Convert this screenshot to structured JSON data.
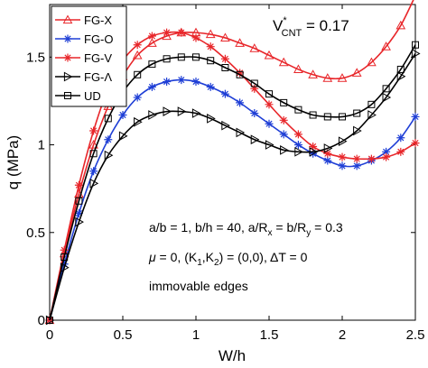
{
  "chart_data": {
    "type": "line",
    "xlabel": "W/h",
    "ylabel": "q (MPa)",
    "xlim": [
      0,
      2.5
    ],
    "ylim": [
      0,
      1.8
    ],
    "xticks": [
      "0",
      "0.5",
      "1",
      "1.5",
      "2",
      "2.5"
    ],
    "yticks": [
      "0",
      "0.5",
      "1",
      "1.5"
    ],
    "legend_position": "top-left",
    "annotations": {
      "vcnt_main": "V",
      "vcnt_sup": "*",
      "vcnt_sub": "CNT",
      "vcnt_value": " = 0.17",
      "geometry_line": "a/b = 1, b/h = 40, a/R",
      "geometry_sub_x": "x",
      "geometry_mid": " = b/R",
      "geometry_sub_y": "y",
      "geometry_end": " = 0.3",
      "params_mu": "μ",
      "params_rest_a": " = 0, (K",
      "params_sub_1": "1",
      "params_comma": ",K",
      "params_sub_2": "2",
      "params_rest_b": ") = (0,0), ΔT = 0",
      "edges": "immovable edges"
    },
    "series": [
      {
        "name": "FG-X",
        "color": "#e8262a",
        "marker": "triangle-up",
        "x": [
          0,
          0.1,
          0.2,
          0.3,
          0.4,
          0.5,
          0.6,
          0.7,
          0.8,
          0.9,
          1.0,
          1.1,
          1.2,
          1.3,
          1.4,
          1.5,
          1.6,
          1.7,
          1.8,
          1.9,
          2.0,
          2.1,
          2.2,
          2.3,
          2.4,
          2.5
        ],
        "y": [
          0,
          0.38,
          0.72,
          1.0,
          1.22,
          1.39,
          1.51,
          1.58,
          1.62,
          1.64,
          1.64,
          1.63,
          1.61,
          1.58,
          1.55,
          1.51,
          1.47,
          1.43,
          1.4,
          1.38,
          1.38,
          1.41,
          1.47,
          1.56,
          1.68,
          1.85
        ]
      },
      {
        "name": "FG-O",
        "color": "#1f3fd6",
        "marker": "star",
        "x": [
          0,
          0.1,
          0.2,
          0.3,
          0.4,
          0.5,
          0.6,
          0.7,
          0.8,
          0.9,
          1.0,
          1.1,
          1.2,
          1.3,
          1.4,
          1.5,
          1.6,
          1.7,
          1.8,
          1.9,
          2.0,
          2.1,
          2.2,
          2.3,
          2.4,
          2.5
        ],
        "y": [
          0,
          0.32,
          0.61,
          0.85,
          1.03,
          1.17,
          1.27,
          1.33,
          1.36,
          1.37,
          1.36,
          1.33,
          1.29,
          1.24,
          1.18,
          1.12,
          1.06,
          1.0,
          0.95,
          0.91,
          0.88,
          0.88,
          0.91,
          0.96,
          1.04,
          1.16
        ]
      },
      {
        "name": "FG-V",
        "color": "#e8262a",
        "marker": "star",
        "x": [
          0,
          0.1,
          0.2,
          0.3,
          0.4,
          0.5,
          0.6,
          0.7,
          0.8,
          0.9,
          1.0,
          1.1,
          1.2,
          1.3,
          1.4,
          1.5,
          1.6,
          1.7,
          1.8,
          1.9,
          2.0,
          2.1,
          2.2,
          2.3,
          2.4,
          2.5
        ],
        "y": [
          0,
          0.4,
          0.77,
          1.08,
          1.32,
          1.48,
          1.57,
          1.62,
          1.64,
          1.64,
          1.61,
          1.56,
          1.49,
          1.41,
          1.32,
          1.23,
          1.14,
          1.06,
          0.99,
          0.95,
          0.93,
          0.92,
          0.92,
          0.93,
          0.96,
          1.01
        ]
      },
      {
        "name": "FG-Λ",
        "color": "#000000",
        "marker": "triangle-right",
        "x": [
          0,
          0.1,
          0.2,
          0.3,
          0.4,
          0.5,
          0.6,
          0.7,
          0.8,
          0.9,
          1.0,
          1.1,
          1.2,
          1.3,
          1.4,
          1.5,
          1.6,
          1.7,
          1.8,
          1.9,
          2.0,
          2.1,
          2.2,
          2.3,
          2.4,
          2.5
        ],
        "y": [
          0,
          0.3,
          0.56,
          0.78,
          0.94,
          1.05,
          1.13,
          1.17,
          1.19,
          1.19,
          1.18,
          1.15,
          1.11,
          1.07,
          1.03,
          1.0,
          0.97,
          0.96,
          0.96,
          0.98,
          1.02,
          1.08,
          1.17,
          1.27,
          1.39,
          1.52
        ]
      },
      {
        "name": "UD",
        "color": "#000000",
        "marker": "square",
        "x": [
          0,
          0.1,
          0.2,
          0.3,
          0.4,
          0.5,
          0.6,
          0.7,
          0.8,
          0.9,
          1.0,
          1.1,
          1.2,
          1.3,
          1.4,
          1.5,
          1.6,
          1.7,
          1.8,
          1.9,
          2.0,
          2.1,
          2.2,
          2.3,
          2.4,
          2.5
        ],
        "y": [
          0,
          0.36,
          0.68,
          0.95,
          1.15,
          1.3,
          1.4,
          1.46,
          1.49,
          1.5,
          1.5,
          1.48,
          1.44,
          1.4,
          1.35,
          1.29,
          1.24,
          1.2,
          1.17,
          1.16,
          1.16,
          1.18,
          1.23,
          1.32,
          1.43,
          1.57
        ]
      }
    ]
  }
}
